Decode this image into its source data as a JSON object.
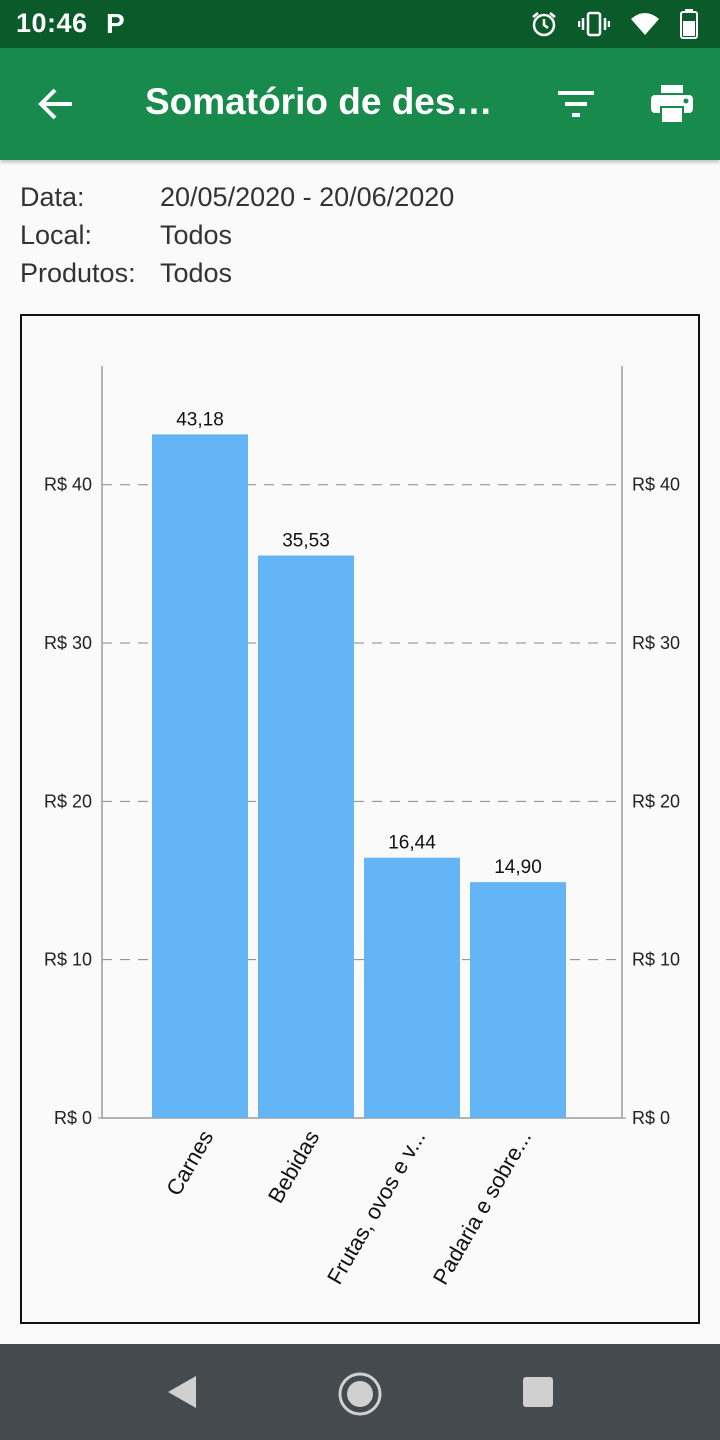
{
  "status_bar": {
    "time": "10:46",
    "app_icon_letter": "P",
    "icons": [
      "alarm-icon",
      "vibrate-icon",
      "wifi-icon",
      "battery-icon"
    ]
  },
  "app_bar": {
    "title": "Somatório de despesas",
    "back_icon": "arrow-back-icon",
    "filter_icon": "filter-icon",
    "print_icon": "print-icon",
    "color": "#178a4c"
  },
  "filters": [
    {
      "label": "Data:",
      "value": "20/05/2020 - 20/06/2020"
    },
    {
      "label": "Local:",
      "value": "Todos"
    },
    {
      "label": "Produtos:",
      "value": "Todos"
    }
  ],
  "chart_data": {
    "type": "bar",
    "categories": [
      "Carnes",
      "Bebidas",
      "Frutas, ovos e v...",
      "Padaria e sobre..."
    ],
    "values": [
      43.18,
      35.53,
      16.44,
      14.9
    ],
    "value_labels": [
      "43,18",
      "35,53",
      "16,44",
      "14,90"
    ],
    "yticks": [
      0,
      10,
      20,
      30,
      40
    ],
    "ytick_labels": [
      "R$ 0",
      "R$ 10",
      "R$ 20",
      "R$ 30",
      "R$ 40"
    ],
    "ylim": [
      0,
      47.5
    ],
    "grid": true,
    "bar_color": "#64b5f6"
  },
  "nav_bar": {
    "icons": [
      "nav-back-icon",
      "nav-home-icon",
      "nav-recents-icon"
    ]
  }
}
